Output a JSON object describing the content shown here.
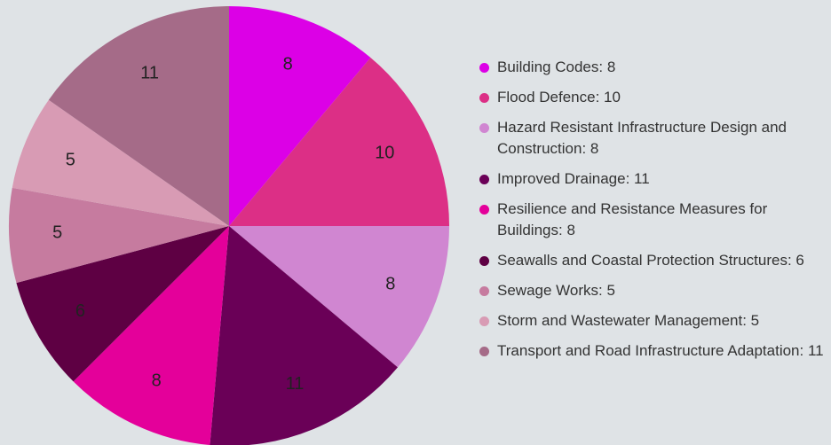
{
  "chart_data": {
    "type": "pie",
    "categories": [
      "Building Codes",
      "Flood Defence",
      "Hazard Resistant Infrastructure Design and Construction",
      "Improved Drainage",
      "Resilience and Resistance Measures for Buildings",
      "Seawalls and Coastal Protection Structures",
      "Sewage Works",
      "Storm and Wastewater Management",
      "Transport and Road Infrastructure Adaptation"
    ],
    "values": [
      8,
      10,
      8,
      11,
      8,
      6,
      5,
      5,
      11
    ],
    "colors": [
      "#dc00e6",
      "#dc2f86",
      "#d086d1",
      "#6a0057",
      "#e4009a",
      "#5e0043",
      "#c67b9f",
      "#d89bb4",
      "#a56b88"
    ],
    "legend": "right"
  }
}
